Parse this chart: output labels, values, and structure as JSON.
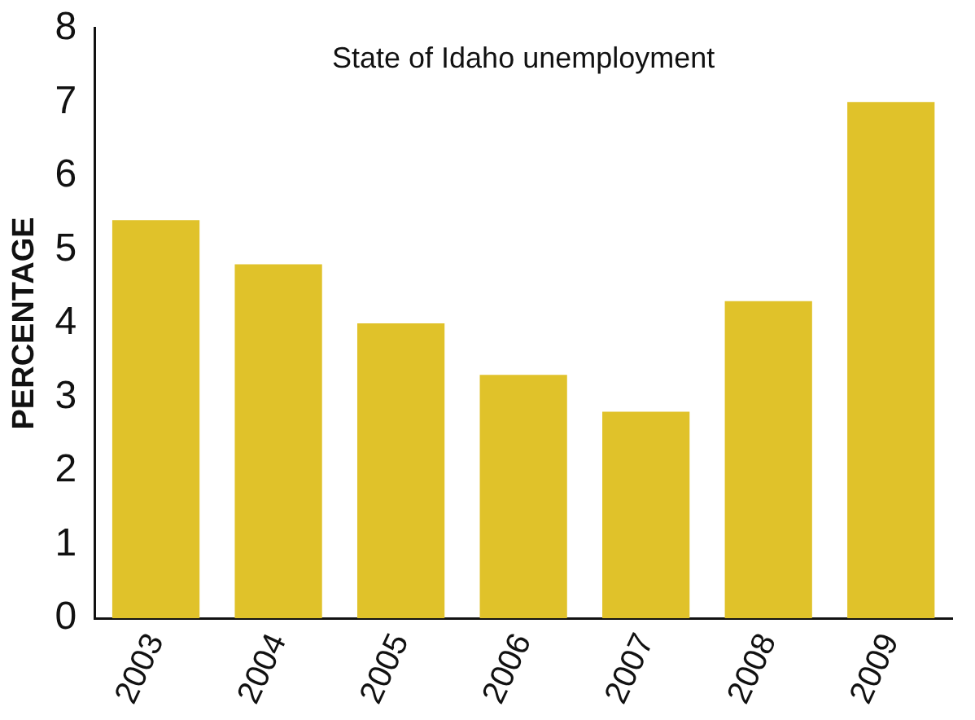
{
  "chart_data": {
    "type": "bar",
    "title": "State of Idaho unemployment",
    "ylabel": "PERCENTAGE",
    "categories": [
      "2003",
      "2004",
      "2005",
      "2006",
      "2007",
      "2008",
      "2009"
    ],
    "values": [
      5.4,
      4.8,
      4.0,
      3.3,
      2.8,
      4.3,
      7.0
    ],
    "color": "#e0c22a",
    "ylim": [
      0,
      8
    ],
    "yticks": [
      0,
      1,
      2,
      3,
      4,
      5,
      6,
      7,
      8
    ],
    "grid": false,
    "legend": false
  }
}
